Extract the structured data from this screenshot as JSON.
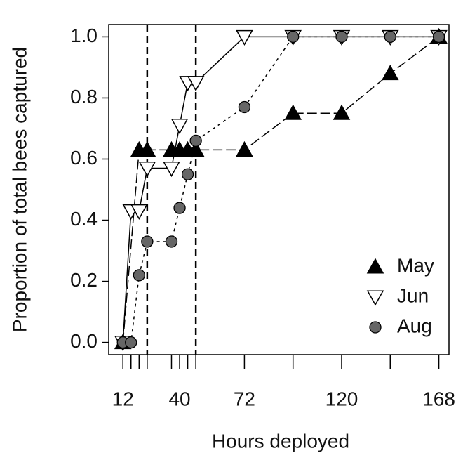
{
  "chart_data": {
    "type": "line",
    "x_label": "Hours deployed",
    "y_label": "Proportion of total bees captured",
    "xlim": [
      5,
      173
    ],
    "xticks": [
      12,
      40,
      72,
      120,
      168
    ],
    "xticks_unlabeled": [
      16,
      20,
      24,
      36,
      44,
      48,
      96,
      144
    ],
    "ylim": [
      -0.04,
      1.04
    ],
    "yticks": [
      {
        "value": 0,
        "label": "0.0"
      },
      0.2,
      0.4,
      0.6,
      0.8,
      {
        "value": 1,
        "label": "1.0"
      }
    ],
    "vlines": [
      24,
      48
    ],
    "legend": "bottom-right",
    "series": [
      {
        "name": "May",
        "marker": "triangle-up",
        "color": "#000000",
        "x": [
          12,
          20,
          24,
          36,
          40,
          44,
          48,
          72,
          96,
          120,
          144,
          168
        ],
        "values": [
          0,
          0.63,
          0.63,
          0.63,
          0.63,
          0.63,
          0.63,
          0.63,
          0.75,
          0.75,
          0.88,
          1.0
        ]
      },
      {
        "name": "Jun",
        "marker": "triangle-down",
        "color": "#ffffff",
        "x": [
          12,
          16,
          20,
          24,
          36,
          40,
          44,
          48,
          72,
          96,
          120,
          144,
          168
        ],
        "values": [
          0,
          0.43,
          0.43,
          0.57,
          0.57,
          0.71,
          0.85,
          0.85,
          1.0,
          1.0,
          1.0,
          1.0,
          1.0
        ]
      },
      {
        "name": "Aug",
        "marker": "circle",
        "color": "#666666",
        "x": [
          12,
          16,
          20,
          24,
          36,
          40,
          44,
          48,
          72,
          96,
          120,
          144,
          168
        ],
        "values": [
          0,
          0,
          0.22,
          0.33,
          0.33,
          0.44,
          0.55,
          0.66,
          0.77,
          1.0,
          1.0,
          1.0,
          1.0
        ]
      }
    ]
  }
}
